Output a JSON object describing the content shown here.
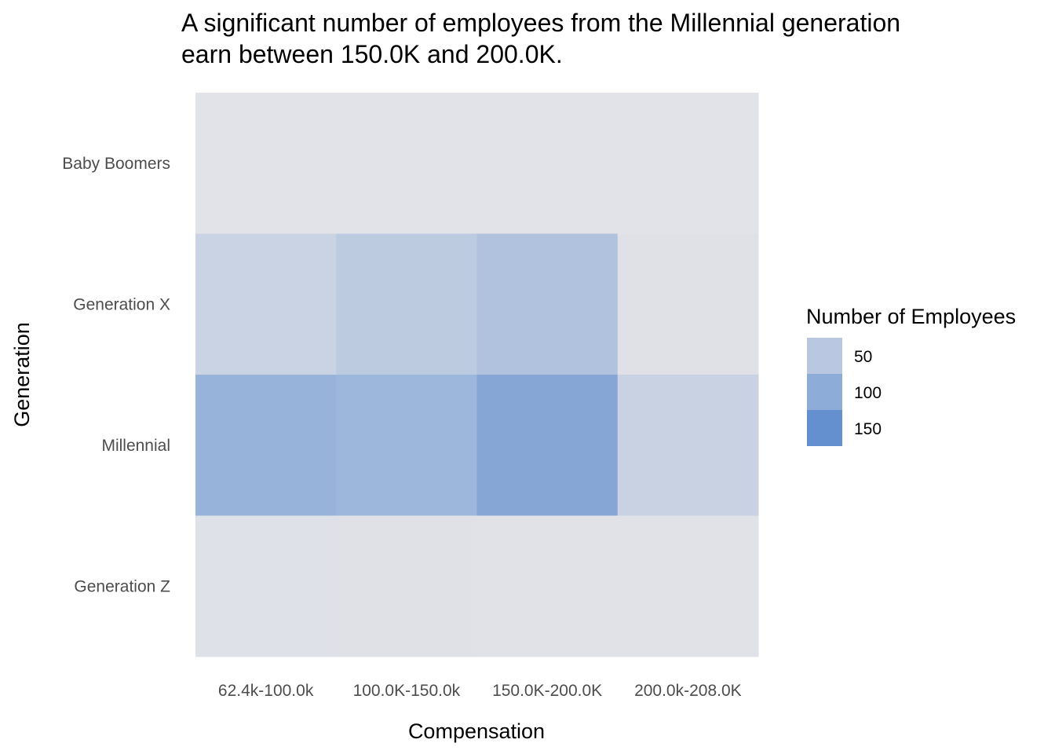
{
  "chart_data": {
    "type": "heatmap",
    "title_lines": [
      "A significant number of employees from the Millennial generation",
      "earn between 150.0K and 200.0K."
    ],
    "xlabel": "Compensation",
    "ylabel": "Generation",
    "x_categories": [
      "62.4k-100.0k",
      "100.0K-150.0k",
      "150.0K-200.0K",
      "200.0k-208.0K"
    ],
    "y_categories": [
      "Baby Boomers",
      "Generation X",
      "Millennial",
      "Generation Z"
    ],
    "values": [
      [
        2,
        2,
        2,
        2
      ],
      [
        30,
        45,
        60,
        5
      ],
      [
        88,
        82,
        110,
        32
      ],
      [
        6,
        5,
        3,
        4
      ]
    ],
    "value_range": [
      0,
      180
    ],
    "color_low": "#e3e4e8",
    "color_high": "#4a7fcb",
    "legend": {
      "title": "Number of Employees",
      "position": "right",
      "breaks": [
        50,
        100,
        150
      ],
      "labels": [
        "50",
        "100",
        "150"
      ]
    },
    "panel_background": "#e4e5e9",
    "grid": false
  }
}
